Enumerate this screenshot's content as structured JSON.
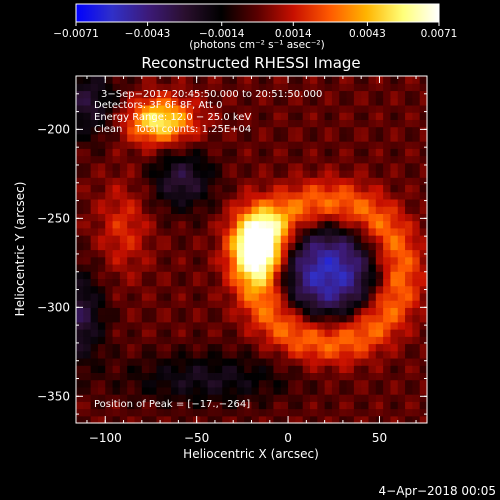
{
  "chart_data": {
    "type": "heatmap",
    "title": "Reconstructed RHESSI Image",
    "xlabel": "Heliocentric X (arcsec)",
    "ylabel": "Heliocentric Y (arcsec)",
    "xlim": [
      -116,
      76
    ],
    "ylim": [
      -365,
      -170
    ],
    "x_ticks": [
      {
        "v": -100,
        "label": "−100"
      },
      {
        "v": -50,
        "label": "−50"
      },
      {
        "v": 0,
        "label": "0"
      },
      {
        "v": 50,
        "label": "50"
      }
    ],
    "y_ticks": [
      {
        "v": -200,
        "label": "−200"
      },
      {
        "v": -250,
        "label": "−250"
      },
      {
        "v": -300,
        "label": "−300"
      },
      {
        "v": -350,
        "label": "−350"
      }
    ],
    "colorbar": {
      "min": -0.0071,
      "max": 0.0071,
      "ticks": [
        {
          "v": -0.0071,
          "label": "−0.0071"
        },
        {
          "v": -0.0043,
          "label": "−0.0043"
        },
        {
          "v": -0.0014,
          "label": "−0.0014"
        },
        {
          "v": 0.0014,
          "label": "0.0014"
        },
        {
          "v": 0.0043,
          "label": "0.0043"
        },
        {
          "v": 0.0071,
          "label": "0.0071"
        }
      ],
      "unit_label": "(photons cm⁻² s⁻¹ asec⁻²)",
      "stops": [
        "#0000ff",
        "#3030c8",
        "#3c1a78",
        "#2a0f2e",
        "#000000",
        "#5a0000",
        "#c81000",
        "#ff5a00",
        "#ffb400",
        "#ffff78",
        "#ffffff"
      ]
    },
    "info_lines": [
      "3−Sep−2017 20:45:50.000 to 20:51:50.000",
      "Detectors: 3F 6F 8F, Att 0",
      "Energy Range: 12.0 − 25.0 keV",
      "Clean    Total counts: 1.25E+04"
    ],
    "peak_label": "Position of Peak = [−17.,−264]",
    "peak": [
      -17,
      -264
    ],
    "sources": [
      {
        "x": -17,
        "y": -264,
        "amp": 0.0071,
        "sx": 10,
        "sy": 14
      },
      {
        "x": -70,
        "y": -195,
        "amp": 0.0056,
        "sx": 13,
        "sy": 9
      },
      {
        "x": 22,
        "y": -280,
        "amp": -0.0055,
        "sx": 22,
        "sy": 22
      },
      {
        "x": -58,
        "y": -228,
        "amp": -0.003,
        "sx": 12,
        "sy": 12
      },
      {
        "x": -115,
        "y": -305,
        "amp": -0.0032,
        "sx": 10,
        "sy": 18
      },
      {
        "x": -110,
        "y": -185,
        "amp": -0.0028,
        "sx": 12,
        "sy": 14
      },
      {
        "x": -45,
        "y": -340,
        "amp": -0.0022,
        "sx": 30,
        "sy": 10
      },
      {
        "x": -90,
        "y": -255,
        "amp": 0.0018,
        "sx": 10,
        "sy": 18
      }
    ],
    "ring": {
      "cx": 22,
      "cy": -280,
      "r": 38,
      "width": 10,
      "amp": 0.004
    }
  },
  "footer_date": "4−Apr−2018 00:05"
}
